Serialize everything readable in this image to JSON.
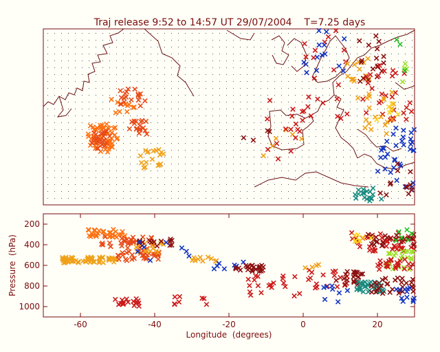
{
  "title": "Traj release 9:52 to 14:57 UT 29/07/2004    T=7.25 days",
  "colors": {
    "background": "#fffff8",
    "axis": "#7a0a0a",
    "coast": "#6b1010",
    "grid_dot": "#555555",
    "palette": [
      "#f0a018",
      "#ff7010",
      "#e84a18",
      "#cc1a1a",
      "#8a0f0f",
      "#1434c0",
      "#ffd21a",
      "#9ae028",
      "#20c020",
      "#1a8a80"
    ]
  },
  "chart_data": [
    {
      "id": "map",
      "type": "scatter",
      "title": "Traj release 9:52 to 14:57 UT 29/07/2004    T=7.25 days",
      "xlim": [
        -70,
        30
      ],
      "ylim": [
        20,
        70
      ],
      "grid": true,
      "marker": "x",
      "clusters": [
        {
          "color": "#ff7010",
          "x": [
            -58,
            -50
          ],
          "y": [
            35,
            43
          ],
          "n": 55
        },
        {
          "color": "#e84a18",
          "x": [
            -57,
            -52
          ],
          "y": [
            36,
            41
          ],
          "n": 25
        },
        {
          "color": "#e84a18",
          "x": [
            -50,
            -42
          ],
          "y": [
            48,
            53
          ],
          "n": 20
        },
        {
          "color": "#e84a18",
          "x": [
            -47,
            -42
          ],
          "y": [
            40,
            44
          ],
          "n": 18
        },
        {
          "color": "#f0a018",
          "x": [
            -44,
            -37
          ],
          "y": [
            30,
            36
          ],
          "n": 18
        },
        {
          "color": "#ff7010",
          "x": [
            -52,
            -44
          ],
          "y": [
            46,
            50
          ],
          "n": 10
        },
        {
          "color": "#f0a018",
          "x": [
            -14,
            0
          ],
          "y": [
            32,
            42
          ],
          "n": 6
        },
        {
          "color": "#cc1a1a",
          "x": [
            -10,
            0
          ],
          "y": [
            33,
            50
          ],
          "n": 16
        },
        {
          "color": "#8a0f0f",
          "x": [
            -17,
            -9
          ],
          "y": [
            38,
            45
          ],
          "n": 4
        },
        {
          "color": "#cc1a1a",
          "x": [
            0,
            14
          ],
          "y": [
            43,
            70
          ],
          "n": 22
        },
        {
          "color": "#1434c0",
          "x": [
            0,
            12
          ],
          "y": [
            57,
            70
          ],
          "n": 14
        },
        {
          "color": "#f0a018",
          "x": [
            11,
            18
          ],
          "y": [
            50,
            62
          ],
          "n": 16
        },
        {
          "color": "#8a0f0f",
          "x": [
            14,
            22
          ],
          "y": [
            55,
            69
          ],
          "n": 18
        },
        {
          "color": "#cc1a1a",
          "x": [
            16,
            30
          ],
          "y": [
            44,
            60
          ],
          "n": 30
        },
        {
          "color": "#f0a018",
          "x": [
            15,
            25
          ],
          "y": [
            40,
            52
          ],
          "n": 18
        },
        {
          "color": "#1434c0",
          "x": [
            20,
            30
          ],
          "y": [
            24,
            42
          ],
          "n": 35
        },
        {
          "color": "#8a0f0f",
          "x": [
            20,
            30
          ],
          "y": [
            22,
            32
          ],
          "n": 12
        },
        {
          "color": "#ffd21a",
          "x": [
            18,
            26
          ],
          "y": [
            44,
            52
          ],
          "n": 6
        },
        {
          "color": "#9ae028",
          "x": [
            22,
            28
          ],
          "y": [
            50,
            62
          ],
          "n": 4
        },
        {
          "color": "#20c020",
          "x": [
            22,
            28
          ],
          "y": [
            58,
            68
          ],
          "n": 3
        },
        {
          "color": "#1a8a80",
          "x": [
            14,
            22
          ],
          "y": [
            21,
            25
          ],
          "n": 18
        }
      ]
    },
    {
      "id": "pressure",
      "type": "scatter",
      "xlabel": "Longitude  (degrees)",
      "ylabel": "Pressure  (hPa)",
      "xlim": [
        -70,
        30
      ],
      "ylim": [
        1100,
        100
      ],
      "xticks": [
        -60,
        -40,
        -20,
        0,
        20
      ],
      "yticks": [
        200,
        400,
        600,
        800,
        1000
      ],
      "marker": "x",
      "clusters": [
        {
          "color": "#f0a018",
          "x": [
            -65,
            -50
          ],
          "y": [
            520,
            580
          ],
          "n": 55
        },
        {
          "color": "#ff7010",
          "x": [
            -58,
            -48
          ],
          "y": [
            250,
            330
          ],
          "n": 30
        },
        {
          "color": "#e84a18",
          "x": [
            -55,
            -40
          ],
          "y": [
            320,
            420
          ],
          "n": 30
        },
        {
          "color": "#e84a18",
          "x": [
            -50,
            -38
          ],
          "y": [
            430,
            560
          ],
          "n": 35
        },
        {
          "color": "#f0a018",
          "x": [
            -45,
            -35
          ],
          "y": [
            360,
            480
          ],
          "n": 18
        },
        {
          "color": "#cc1a1a",
          "x": [
            -52,
            -44
          ],
          "y": [
            920,
            1000
          ],
          "n": 18
        },
        {
          "color": "#8a0f0f",
          "x": [
            -45,
            -35
          ],
          "y": [
            340,
            420
          ],
          "n": 14
        },
        {
          "color": "#1434c0",
          "x": [
            -45,
            -30
          ],
          "y": [
            360,
            560
          ],
          "n": 8
        },
        {
          "color": "#f0a018",
          "x": [
            -30,
            -23
          ],
          "y": [
            520,
            570
          ],
          "n": 10
        },
        {
          "color": "#1434c0",
          "x": [
            -25,
            -12
          ],
          "y": [
            560,
            640
          ],
          "n": 8
        },
        {
          "color": "#8a0f0f",
          "x": [
            -20,
            -10
          ],
          "y": [
            600,
            660
          ],
          "n": 22
        },
        {
          "color": "#cc1a1a",
          "x": [
            -35,
            -25
          ],
          "y": [
            900,
            1000
          ],
          "n": 8
        },
        {
          "color": "#cc1a1a",
          "x": [
            -15,
            0
          ],
          "y": [
            700,
            900
          ],
          "n": 20
        },
        {
          "color": "#cc1a1a",
          "x": [
            0,
            12
          ],
          "y": [
            640,
            820
          ],
          "n": 18
        },
        {
          "color": "#f0a018",
          "x": [
            0,
            6
          ],
          "y": [
            560,
            660
          ],
          "n": 4
        },
        {
          "color": "#1434c0",
          "x": [
            5,
            12
          ],
          "y": [
            780,
            960
          ],
          "n": 8
        },
        {
          "color": "#8a0f0f",
          "x": [
            8,
            16
          ],
          "y": [
            660,
            800
          ],
          "n": 20
        },
        {
          "color": "#cc1a1a",
          "x": [
            13,
            30
          ],
          "y": [
            280,
            480
          ],
          "n": 45
        },
        {
          "color": "#8a0f0f",
          "x": [
            16,
            30
          ],
          "y": [
            300,
            420
          ],
          "n": 25
        },
        {
          "color": "#ffd21a",
          "x": [
            13,
            20
          ],
          "y": [
            300,
            380
          ],
          "n": 8
        },
        {
          "color": "#9ae028",
          "x": [
            22,
            30
          ],
          "y": [
            460,
            640
          ],
          "n": 22
        },
        {
          "color": "#20c020",
          "x": [
            24,
            30
          ],
          "y": [
            240,
            360
          ],
          "n": 6
        },
        {
          "color": "#1a8a80",
          "x": [
            14,
            22
          ],
          "y": [
            760,
            860
          ],
          "n": 35
        },
        {
          "color": "#8a0f0f",
          "x": [
            18,
            30
          ],
          "y": [
            720,
            880
          ],
          "n": 30
        },
        {
          "color": "#cc1a1a",
          "x": [
            20,
            30
          ],
          "y": [
            540,
            640
          ],
          "n": 25
        },
        {
          "color": "#1434c0",
          "x": [
            25,
            30
          ],
          "y": [
            780,
            960
          ],
          "n": 12
        }
      ]
    }
  ]
}
